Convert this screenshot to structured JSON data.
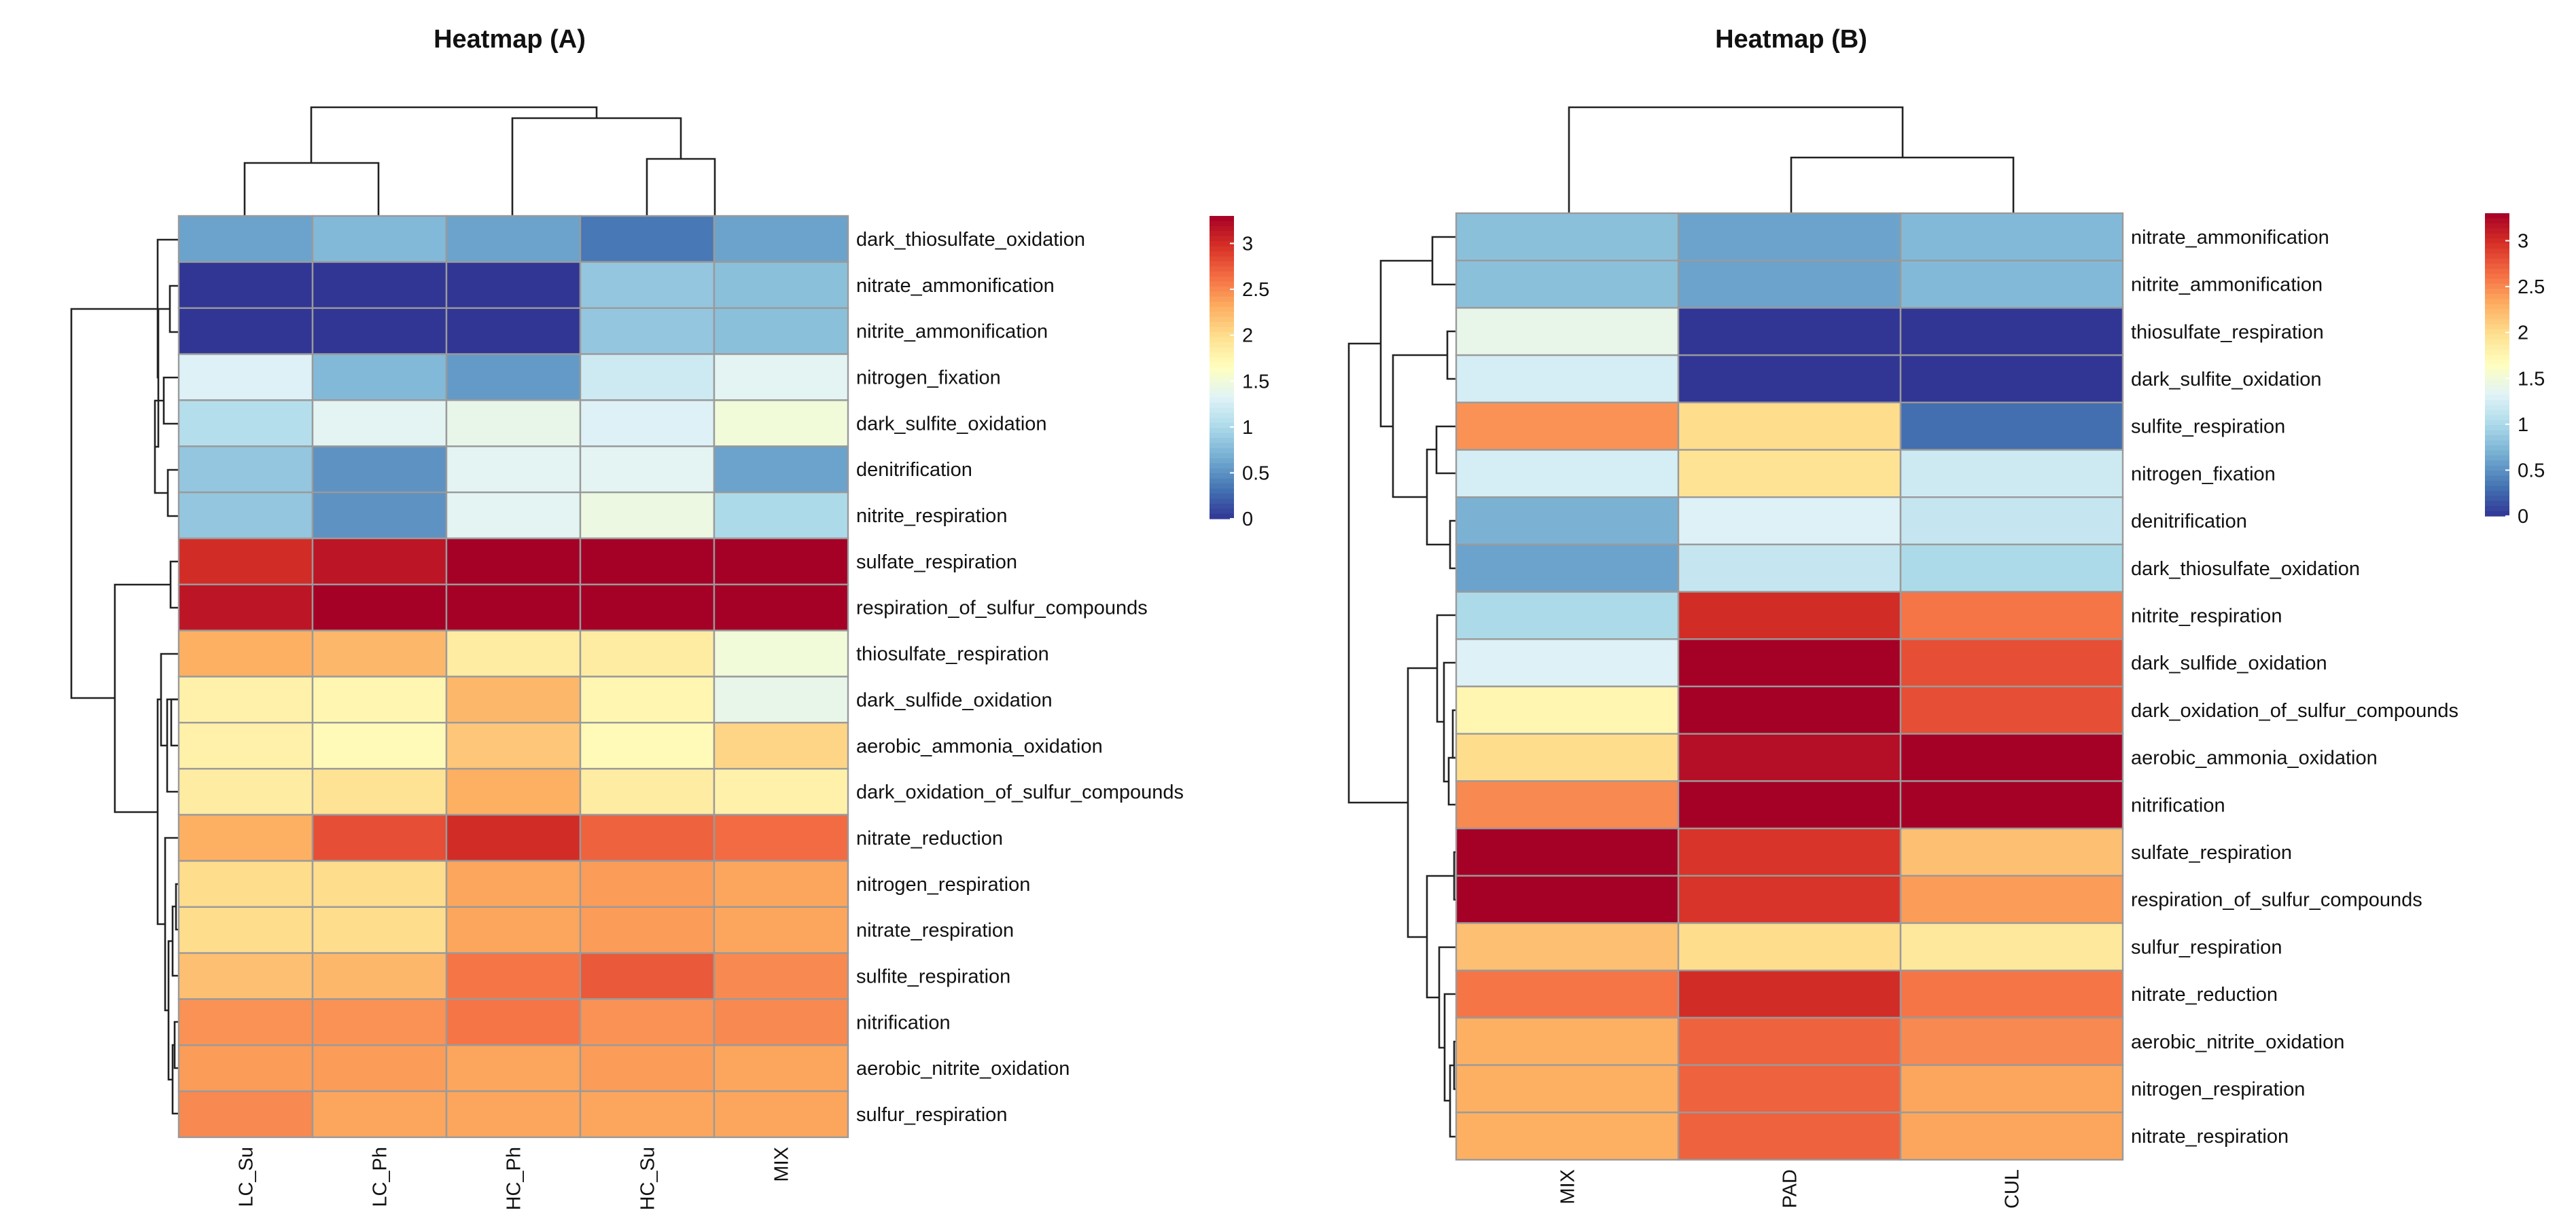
{
  "chart_data": [
    {
      "type": "heatmap",
      "title": "Heatmap (A)",
      "columns": [
        "LC_Su",
        "LC_Ph",
        "HC_Ph",
        "HC_Su",
        "MIX"
      ],
      "rows": [
        "dark_thiosulfate_oxidation",
        "nitrate_ammonification",
        "nitrite_ammonification",
        "nitrogen_fixation",
        "dark_sulfite_oxidation",
        "denitrification",
        "nitrite_respiration",
        "sulfate_respiration",
        "respiration_of_sulfur_compounds",
        "thiosulfate_respiration",
        "dark_sulfide_oxidation",
        "aerobic_ammonia_oxidation",
        "dark_oxidation_of_sulfur_compounds",
        "nitrate_reduction",
        "nitrogen_respiration",
        "nitrate_respiration",
        "sulfite_respiration",
        "nitrification",
        "aerobic_nitrite_oxidation",
        "sulfur_respiration"
      ],
      "values": [
        [
          0.6,
          0.75,
          0.6,
          0.35,
          0.6
        ],
        [
          0.0,
          0.0,
          0.0,
          0.85,
          0.8
        ],
        [
          0.0,
          0.0,
          0.0,
          0.85,
          0.8
        ],
        [
          1.3,
          0.75,
          0.55,
          1.2,
          1.35
        ],
        [
          1.05,
          1.35,
          1.4,
          1.3,
          1.5
        ],
        [
          0.85,
          0.5,
          1.35,
          1.35,
          0.6
        ],
        [
          0.85,
          0.5,
          1.35,
          1.45,
          1.0
        ],
        [
          3.0,
          3.15,
          3.35,
          3.4,
          3.4
        ],
        [
          3.15,
          3.3,
          3.4,
          3.45,
          3.45
        ],
        [
          2.3,
          2.25,
          1.85,
          1.85,
          1.5
        ],
        [
          1.8,
          1.75,
          2.25,
          1.75,
          1.4
        ],
        [
          1.8,
          1.7,
          2.15,
          1.7,
          2.05
        ],
        [
          1.85,
          1.95,
          2.3,
          1.85,
          1.8
        ],
        [
          2.3,
          2.8,
          3.0,
          2.7,
          2.65
        ],
        [
          2.0,
          2.0,
          2.35,
          2.4,
          2.35
        ],
        [
          2.0,
          2.0,
          2.35,
          2.4,
          2.35
        ],
        [
          2.2,
          2.25,
          2.6,
          2.75,
          2.5
        ],
        [
          2.45,
          2.45,
          2.6,
          2.45,
          2.5
        ],
        [
          2.4,
          2.4,
          2.35,
          2.4,
          2.35
        ],
        [
          2.5,
          2.35,
          2.35,
          2.35,
          2.35
        ]
      ],
      "colorbar": {
        "min": 0,
        "max": 3.3,
        "ticks": [
          "0",
          "0.5",
          "1",
          "1.5",
          "2",
          "2.5",
          "3"
        ]
      }
    },
    {
      "type": "heatmap",
      "title": "Heatmap (B)",
      "columns": [
        "MIX",
        "PAD",
        "CUL"
      ],
      "rows": [
        "nitrate_ammonification",
        "nitrite_ammonification",
        "thiosulfate_respiration",
        "dark_sulfite_oxidation",
        "sulfite_respiration",
        "nitrogen_fixation",
        "denitrification",
        "dark_thiosulfate_oxidation",
        "nitrite_respiration",
        "dark_sulfide_oxidation",
        "dark_oxidation_of_sulfur_compounds",
        "aerobic_ammonia_oxidation",
        "nitrification",
        "sulfate_respiration",
        "respiration_of_sulfur_compounds",
        "sulfur_respiration",
        "nitrate_reduction",
        "aerobic_nitrite_oxidation",
        "nitrogen_respiration",
        "nitrate_respiration"
      ],
      "values": [
        [
          0.8,
          0.6,
          0.75
        ],
        [
          0.8,
          0.6,
          0.75
        ],
        [
          1.4,
          0.0,
          0.0
        ],
        [
          1.25,
          0.0,
          0.0
        ],
        [
          2.45,
          2.0,
          0.3
        ],
        [
          1.25,
          1.95,
          1.2
        ],
        [
          0.7,
          1.3,
          1.15
        ],
        [
          0.6,
          1.15,
          1.0
        ],
        [
          1.0,
          3.0,
          2.6
        ],
        [
          1.3,
          3.35,
          2.8
        ],
        [
          1.75,
          3.35,
          2.8
        ],
        [
          2.0,
          3.2,
          3.4
        ],
        [
          2.5,
          3.3,
          3.4
        ],
        [
          3.3,
          2.95,
          2.2
        ],
        [
          3.3,
          2.95,
          2.4
        ],
        [
          2.2,
          2.0,
          1.9
        ],
        [
          2.6,
          3.0,
          2.6
        ],
        [
          2.3,
          2.7,
          2.5
        ],
        [
          2.3,
          2.7,
          2.35
        ],
        [
          2.3,
          2.7,
          2.35
        ]
      ],
      "colorbar": {
        "min": 0,
        "max": 3.3,
        "ticks": [
          "0",
          "0.5",
          "1",
          "1.5",
          "2",
          "2.5",
          "3"
        ]
      }
    }
  ]
}
